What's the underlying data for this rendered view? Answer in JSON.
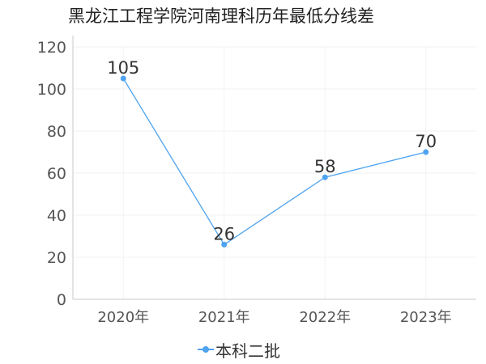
{
  "chart_data": {
    "type": "line",
    "title": "黑龙江工程学院河南理科历年最低分线差",
    "categories": [
      "2020年",
      "2021年",
      "2022年",
      "2023年"
    ],
    "series": [
      {
        "name": "本科二批",
        "values": [
          105,
          26,
          58,
          70
        ],
        "color": "#4da3f0"
      }
    ],
    "ylim": [
      0,
      120
    ],
    "yticks": [
      0,
      20,
      40,
      60,
      80,
      100,
      120
    ],
    "xlabel": "",
    "ylabel": "",
    "grid": true,
    "legend": "bottom-center"
  }
}
